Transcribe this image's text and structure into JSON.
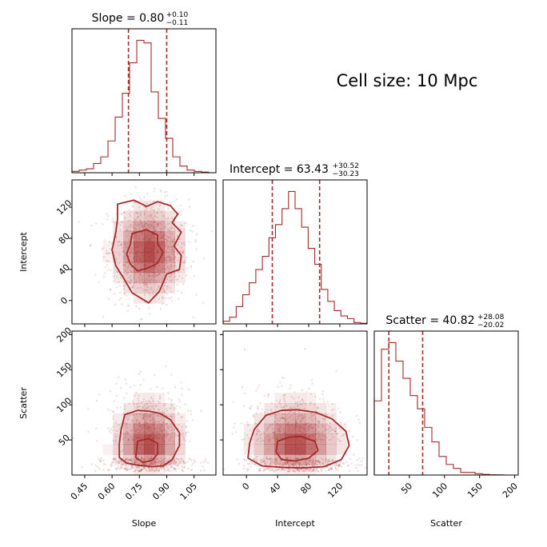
{
  "annotation": "Cell size: 10 Mpc",
  "colors": {
    "accent": "#a52a2a",
    "frame": "#000000"
  },
  "chart_data": {
    "type": "corner",
    "parameters": [
      {
        "key": "slope",
        "label": "Slope",
        "range": [
          0.38,
          1.17
        ],
        "ticks": [
          "0.45",
          "0.60",
          "0.75",
          "0.90",
          "1.05"
        ],
        "tick_values": [
          0.45,
          0.6,
          0.75,
          0.9,
          1.05
        ],
        "title": {
          "text": "Slope = 0.80",
          "plus": "+0.10",
          "minus": "−0.11"
        },
        "quantiles": [
          0.69,
          0.9
        ],
        "hist": [
          0.01,
          0.02,
          0.03,
          0.07,
          0.12,
          0.24,
          0.42,
          0.6,
          0.83,
          1.0,
          0.98,
          0.61,
          0.41,
          0.26,
          0.12,
          0.05,
          0.02,
          0.01,
          0.005,
          0.0
        ]
      },
      {
        "key": "intercept",
        "label": "Intercept",
        "range": [
          -30,
          155
        ],
        "ticks": [
          "0",
          "40",
          "80",
          "120"
        ],
        "tick_values": [
          0,
          40,
          80,
          120
        ],
        "title": {
          "text": "Intercept = 63.43",
          "plus": "+30.52",
          "minus": "−30.23"
        },
        "quantiles": [
          33.2,
          94.0
        ],
        "hist": [
          0.02,
          0.05,
          0.13,
          0.22,
          0.31,
          0.41,
          0.51,
          0.65,
          0.75,
          0.87,
          1.0,
          0.87,
          0.73,
          0.57,
          0.45,
          0.26,
          0.17,
          0.1,
          0.06,
          0.04,
          0.01,
          0.005
        ]
      },
      {
        "key": "scatter",
        "label": "Scatter",
        "range": [
          0,
          205
        ],
        "ticks": [
          "50",
          "100",
          "150",
          "200"
        ],
        "tick_values": [
          50,
          100,
          150,
          200
        ],
        "title": {
          "text": "Scatter = 40.82",
          "plus": "+28.08",
          "minus": "−20.02"
        },
        "quantiles": [
          20.8,
          68.9
        ],
        "hist": [
          0.56,
          0.95,
          1.0,
          0.86,
          0.73,
          0.6,
          0.5,
          0.36,
          0.25,
          0.14,
          0.08,
          0.05,
          0.02,
          0.02,
          0.01,
          0.005,
          0.002,
          0.001,
          0.0,
          0.0
        ]
      }
    ],
    "pairs": [
      {
        "x": "slope",
        "y": "intercept",
        "center": [
          0.8,
          63
        ],
        "spread": [
          0.1,
          30
        ],
        "contours": [
          [
            [
              0.63,
              124
            ],
            [
              0.72,
              129
            ],
            [
              0.79,
              121
            ],
            [
              0.85,
              127
            ],
            [
              0.92,
              122
            ],
            [
              0.96,
              111
            ],
            [
              0.93,
              100
            ],
            [
              0.98,
              88
            ],
            [
              0.94,
              70
            ],
            [
              0.98,
              58
            ],
            [
              0.97,
              40
            ],
            [
              0.9,
              34
            ],
            [
              0.86,
              12
            ],
            [
              0.8,
              -3
            ],
            [
              0.71,
              10
            ],
            [
              0.66,
              30
            ],
            [
              0.62,
              45
            ],
            [
              0.6,
              65
            ],
            [
              0.62,
              87
            ],
            [
              0.63,
              105
            ]
          ],
          [
            [
              0.71,
              86
            ],
            [
              0.79,
              91
            ],
            [
              0.85,
              84
            ],
            [
              0.85,
              73
            ],
            [
              0.88,
              62
            ],
            [
              0.85,
              48
            ],
            [
              0.8,
              42
            ],
            [
              0.74,
              38
            ],
            [
              0.7,
              47
            ],
            [
              0.68,
              60
            ],
            [
              0.7,
              72
            ]
          ]
        ]
      },
      {
        "x": "slope",
        "y": "scatter",
        "center": [
          0.8,
          40
        ],
        "spread": [
          0.1,
          28
        ],
        "contours": [
          [
            [
              0.67,
              86
            ],
            [
              0.74,
              92
            ],
            [
              0.8,
              91
            ],
            [
              0.86,
              88
            ],
            [
              0.92,
              79
            ],
            [
              0.97,
              60
            ],
            [
              0.97,
              42
            ],
            [
              0.93,
              22
            ],
            [
              0.88,
              13
            ],
            [
              0.82,
              12
            ],
            [
              0.74,
              14
            ],
            [
              0.68,
              17
            ],
            [
              0.64,
              25
            ],
            [
              0.64,
              45
            ],
            [
              0.65,
              65
            ]
          ],
          [
            [
              0.74,
              48
            ],
            [
              0.8,
              52
            ],
            [
              0.85,
              45
            ],
            [
              0.85,
              30
            ],
            [
              0.82,
              21
            ],
            [
              0.77,
              18
            ],
            [
              0.73,
              25
            ]
          ]
        ]
      },
      {
        "x": "intercept",
        "y": "scatter",
        "center": [
          63,
          40
        ],
        "spread": [
          30,
          28
        ],
        "contours": [
          [
            [
              25,
              85
            ],
            [
              45,
              92
            ],
            [
              65,
              93
            ],
            [
              90,
              89
            ],
            [
              110,
              80
            ],
            [
              128,
              62
            ],
            [
              132,
              42
            ],
            [
              122,
              22
            ],
            [
              100,
              12
            ],
            [
              70,
              10
            ],
            [
              45,
              11
            ],
            [
              20,
              13
            ],
            [
              2,
              24
            ],
            [
              4,
              45
            ],
            [
              10,
              65
            ]
          ],
          [
            [
              40,
              48
            ],
            [
              55,
              54
            ],
            [
              70,
              55
            ],
            [
              88,
              48
            ],
            [
              92,
              35
            ],
            [
              80,
              24
            ],
            [
              62,
              20
            ],
            [
              45,
              22
            ],
            [
              38,
              33
            ]
          ]
        ]
      }
    ]
  }
}
